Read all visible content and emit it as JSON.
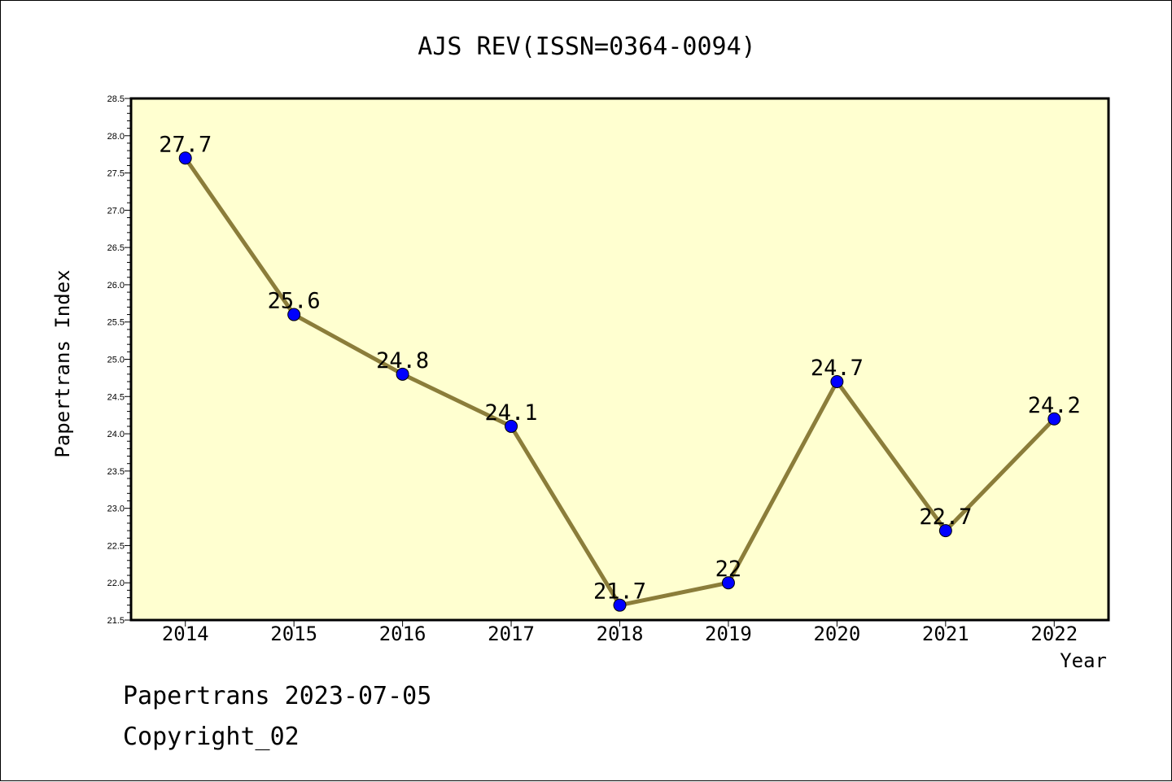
{
  "chart_data": {
    "type": "line",
    "title": "AJS REV(ISSN=0364-0094)",
    "xlabel": "Year",
    "ylabel": "Papertrans Index",
    "x": [
      "2014",
      "2015",
      "2016",
      "2017",
      "2018",
      "2019",
      "2020",
      "2021",
      "2022"
    ],
    "series": [
      {
        "values": [
          27.7,
          25.6,
          24.8,
          24.1,
          21.7,
          22.0,
          24.7,
          22.7,
          24.2
        ],
        "labels": [
          "27.7",
          "25.6",
          "24.8",
          "24.1",
          "21.7",
          "22",
          "24.7",
          "22.7",
          "24.2"
        ]
      }
    ],
    "ylim": [
      21.5,
      28.5
    ],
    "yticks": [
      "21.5",
      "22.0",
      "22.5",
      "23.0",
      "23.5",
      "24.0",
      "24.5",
      "25.0",
      "25.5",
      "26.0",
      "26.5",
      "27.0",
      "27.5",
      "28.0",
      "28.5"
    ],
    "grid": false,
    "legend": "none",
    "colors": {
      "plot_background": "#ffffd0",
      "line": "#8b7d3a",
      "marker": "#0000ff"
    }
  },
  "footer": {
    "line1": "Papertrans 2023-07-05",
    "line2": "Copyright_02"
  }
}
